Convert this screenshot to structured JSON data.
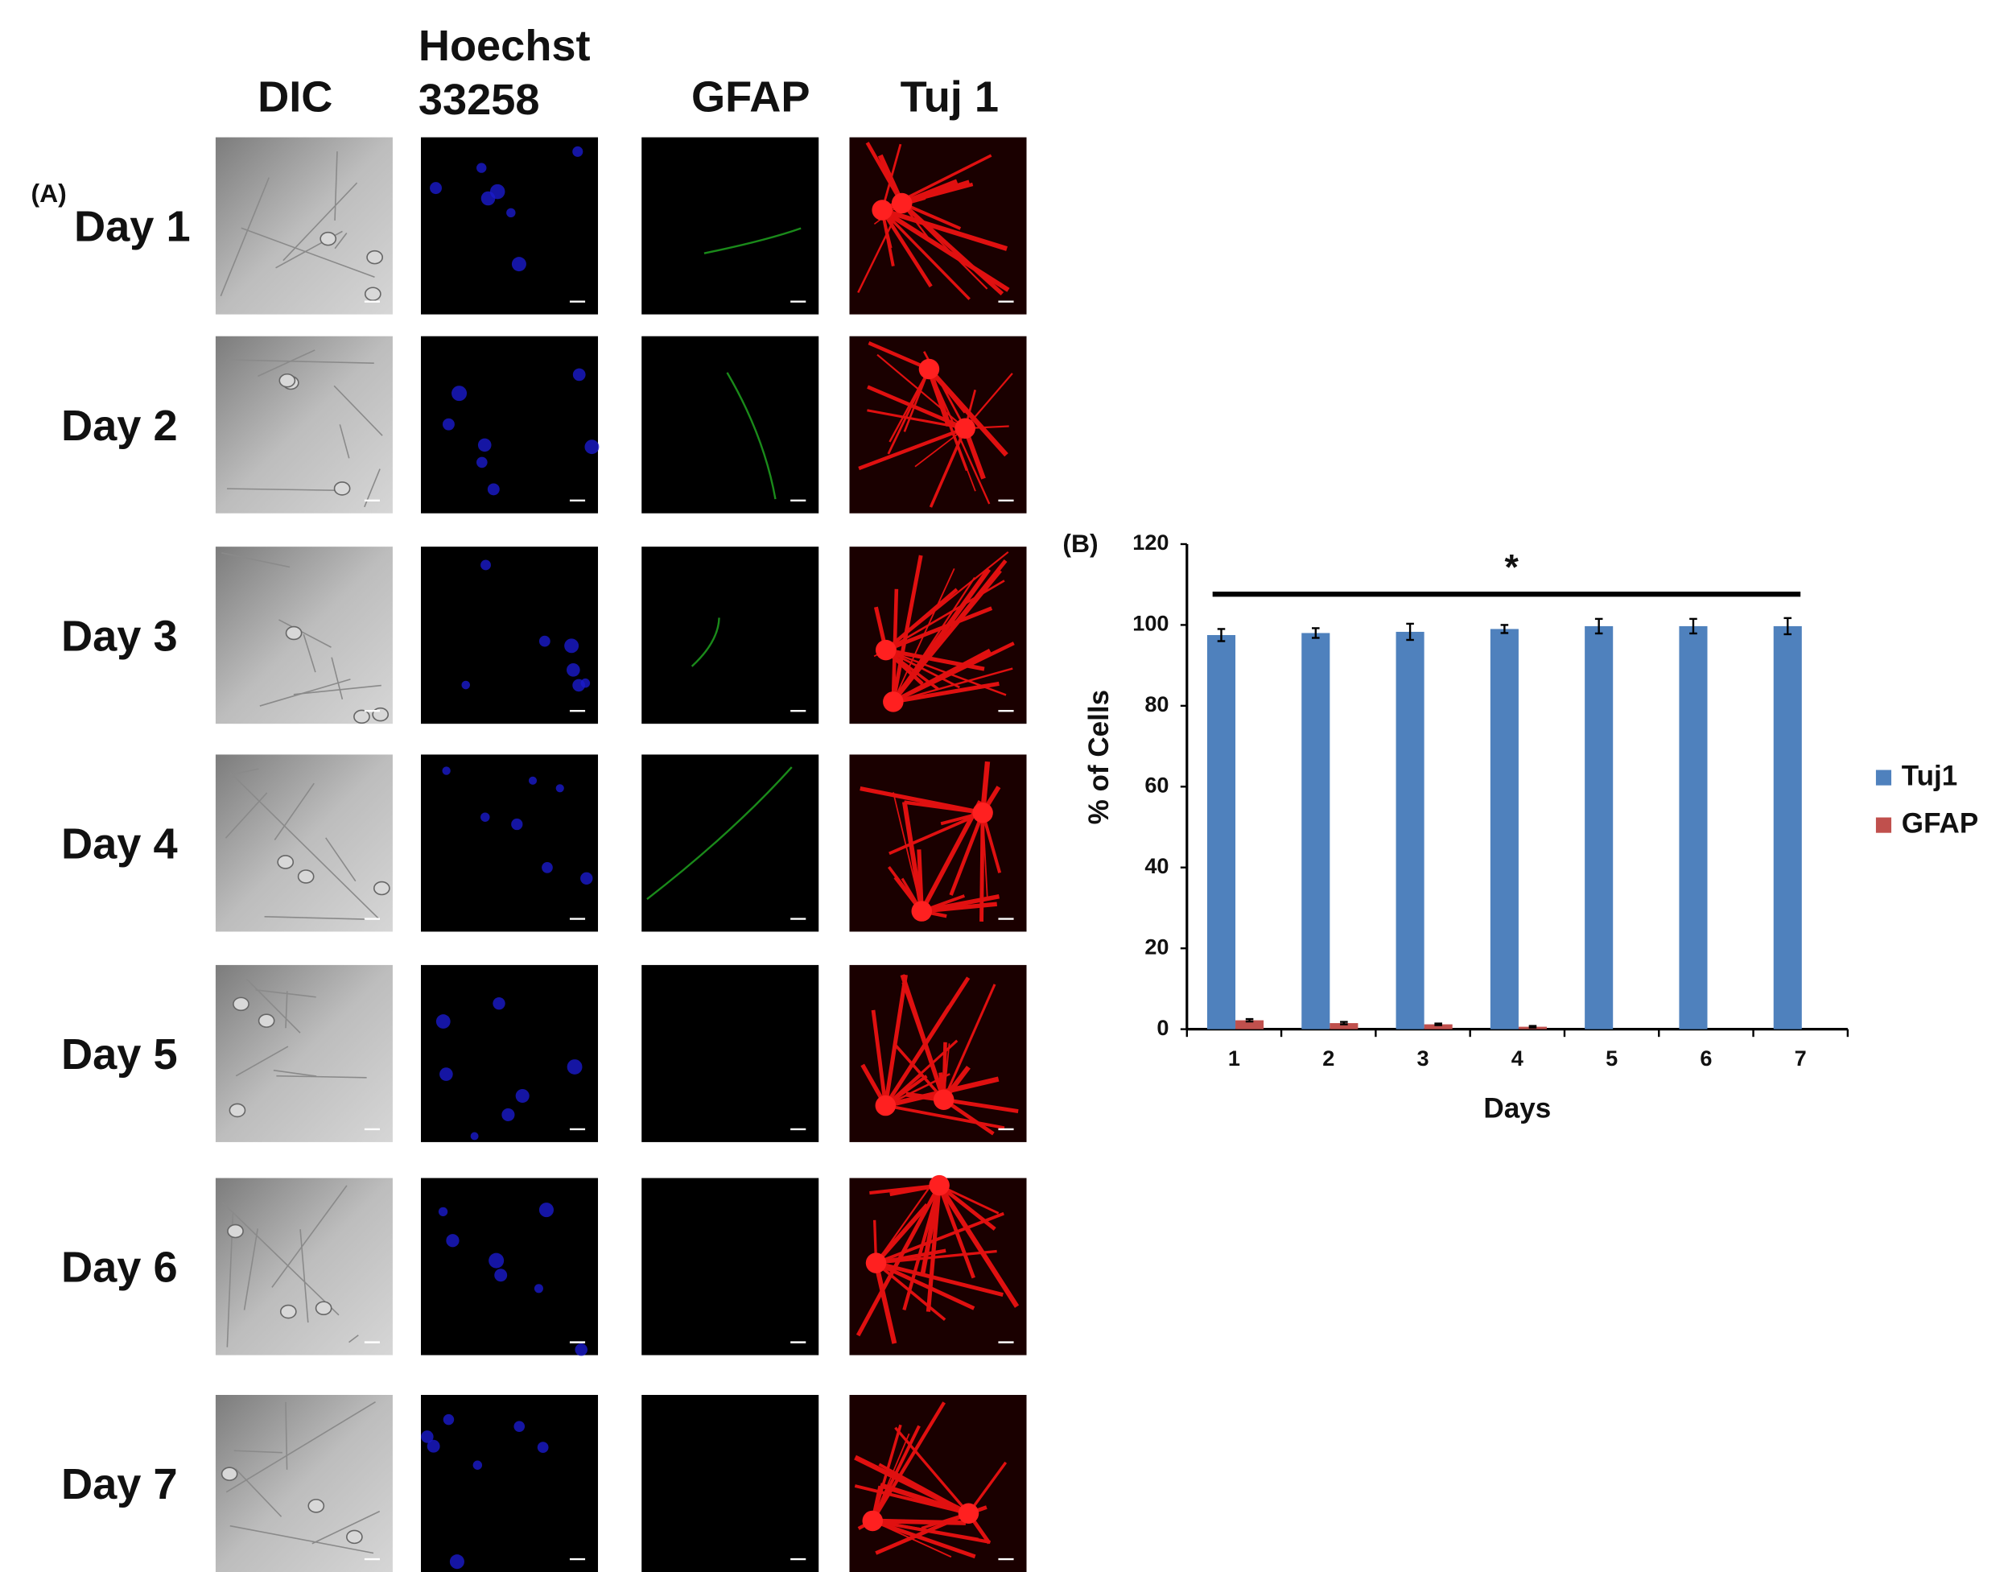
{
  "panel_a": {
    "label": "(A)",
    "column_headers": [
      [
        "DIC"
      ],
      [
        "Hoechst",
        "33258"
      ],
      [
        "GFAP"
      ],
      [
        "Tuj 1"
      ]
    ],
    "rows": [
      "Day 1",
      "Day 2",
      "Day 3",
      "Day 4",
      "Day 5",
      "Day 6",
      "Day 7"
    ]
  },
  "chart_data": {
    "type": "bar",
    "panel_label": "(B)",
    "xlabel": "Days",
    "ylabel": "%  of Cells",
    "annotation": "*",
    "categories": [
      "1",
      "2",
      "3",
      "4",
      "5",
      "6",
      "7"
    ],
    "series": [
      {
        "name": "Tuj1",
        "color": "#4f81bd",
        "values": [
          97.5,
          98,
          98.3,
          99,
          99.7,
          99.7,
          99.7
        ],
        "errors": [
          1.5,
          1.2,
          2,
          1,
          1.8,
          1.8,
          2
        ]
      },
      {
        "name": "GFAP",
        "color": "#c0504d",
        "values": [
          2.2,
          1.5,
          1.2,
          0.6,
          0,
          0,
          0
        ],
        "errors": [
          0.3,
          0.3,
          0.2,
          0.2,
          0,
          0,
          0
        ]
      }
    ],
    "ylim": [
      0,
      120
    ],
    "yticks": [
      0,
      20,
      40,
      60,
      80,
      100,
      120
    ],
    "legend": "right"
  }
}
